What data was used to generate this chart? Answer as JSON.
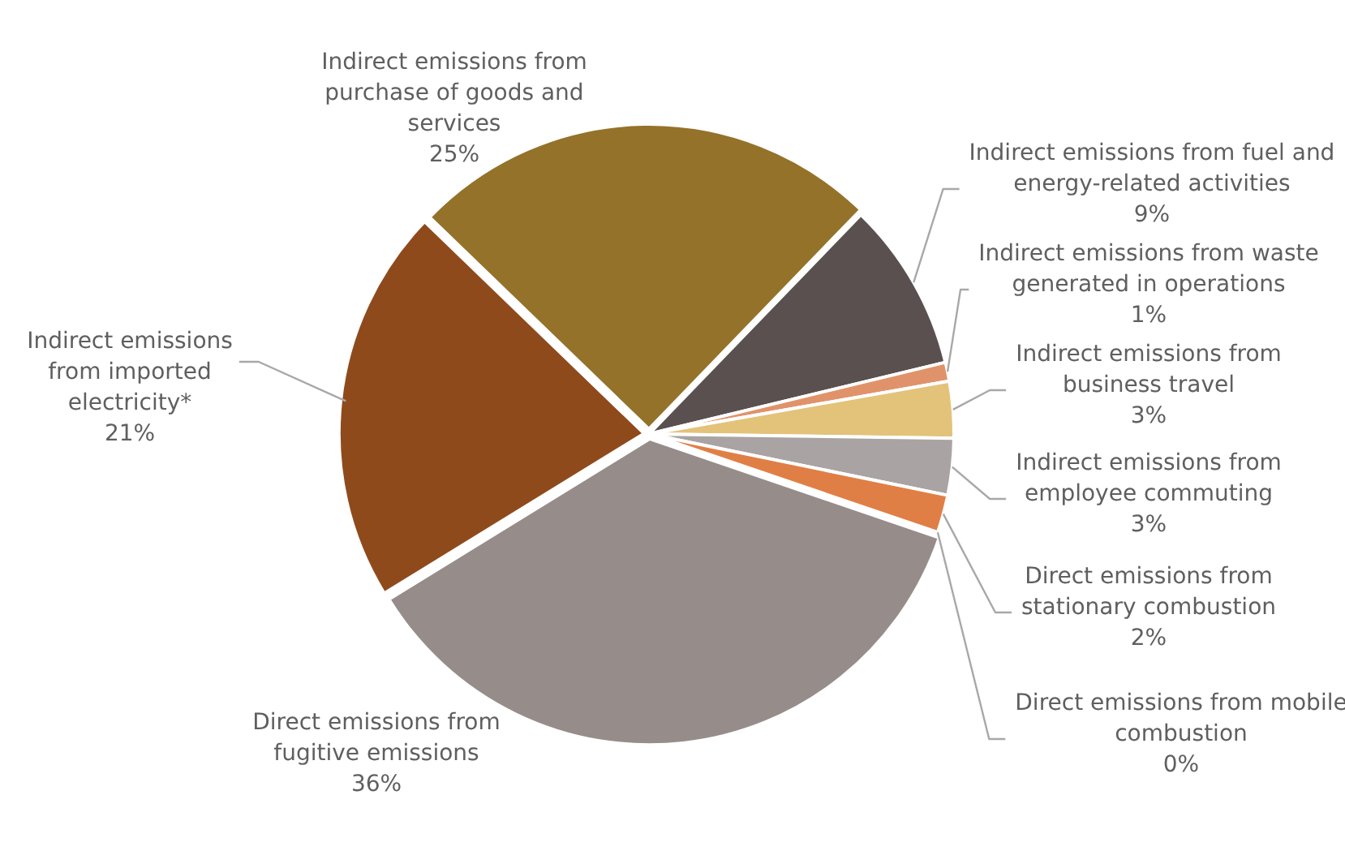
{
  "chart_data": {
    "type": "pie",
    "categories": [
      "Indirect emissions from purchase of goods and services",
      "Indirect emissions from fuel and energy-related activities",
      "Indirect emissions from waste generated in operations",
      "Indirect emissions from business travel",
      "Indirect emissions from employee commuting",
      "Direct emissions from stationary combustion",
      "Direct emissions from mobile combustion",
      "Direct emissions from fugitive emissions",
      "Indirect emissions from imported electricity*"
    ],
    "values": [
      25,
      9,
      1,
      3,
      3,
      2,
      0,
      36,
      21
    ],
    "value_labels": [
      "25%",
      "9%",
      "1%",
      "3%",
      "3%",
      "2%",
      "0%",
      "36%",
      "21%"
    ],
    "colors": [
      "#94722a",
      "#5a5050",
      "#e0936a",
      "#e3c27a",
      "#a9a3a3",
      "#e07f45",
      "#c0c0c0",
      "#968c8a",
      "#8f4a1c"
    ],
    "legend": false
  }
}
